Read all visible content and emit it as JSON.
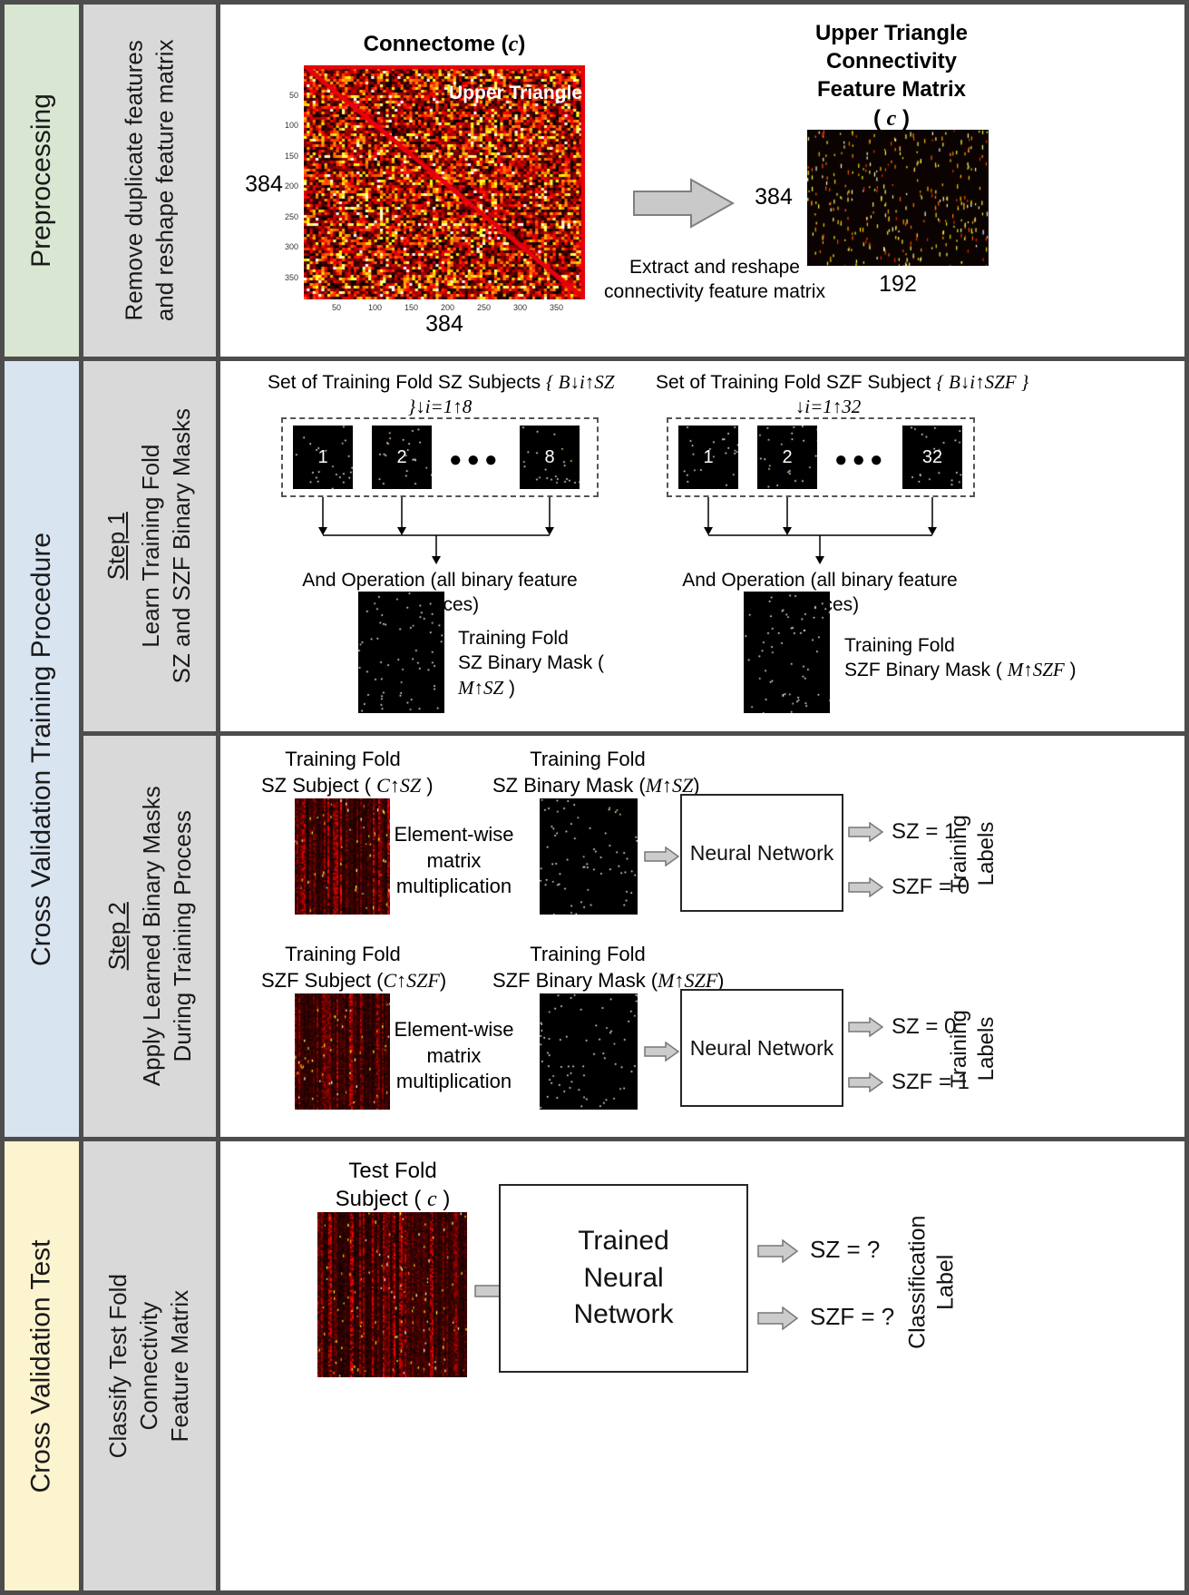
{
  "palette": {
    "green": "#d9e7d2",
    "blue": "#d9e4f1",
    "yellow": "#fcf3cf",
    "gray_band": "#d9d9d9",
    "border_gray": "#4d4d4d",
    "diagonal_red": "#e8000b"
  },
  "left_bands": {
    "preprocessing": "Preprocessing",
    "training": "Cross Validation Training Procedure",
    "test": "Cross Validation Test"
  },
  "gray_bands": {
    "preprocessing_line1": "Remove duplicate features",
    "preprocessing_line2": "and reshape feature matrix",
    "step1_title": "Step 1",
    "step1_line1": "Learn Training Fold",
    "step1_line2": "SZ and SZF Binary Masks",
    "step2_title": "Step 2",
    "step2_line1": "Apply Learned Binary Masks",
    "step2_line2": "During Training Process",
    "test_line1": "Classify Test Fold",
    "test_line2": "Connectivity",
    "test_line3": "Feature Matrix"
  },
  "row1": {
    "connectome_title_prefix": "Connectome (",
    "connectome_title_math": "c",
    "connectome_title_suffix": ")",
    "upper_triangle_label": "Upper Triangle",
    "axis_ticks": [
      "50",
      "100",
      "150",
      "200",
      "250",
      "300",
      "350"
    ],
    "left_dim": "384",
    "bottom_dim": "384",
    "arrow_caption_line1": "Extract and reshape",
    "arrow_caption_line2": "connectivity feature matrix",
    "result_title_line1": "Upper Triangle",
    "result_title_line2": "Connectivity",
    "result_title_line3": "Feature Matrix",
    "result_title_open": "( ",
    "result_title_math": "c",
    "result_title_close": " )",
    "result_left_dim": "384",
    "result_bottom_dim": "192"
  },
  "step1": {
    "sz_title_prefix": "Set of Training Fold SZ Subjects ",
    "sz_title_math1": "{ B↓i↑SZ",
    "sz_title_math2": "}↓i=1↑8",
    "sz_squares": [
      "1",
      "2",
      "8"
    ],
    "szf_title_prefix": "Set of Training Fold SZF Subject ",
    "szf_title_math1": "{ B↓i↑SZF }",
    "szf_title_math2": "↓i=1↑32",
    "szf_squares": [
      "1",
      "2",
      "32"
    ],
    "dots": "●●●",
    "and_operation": "And Operation (all binary feature matrices)",
    "sz_mask_line1": "Training Fold",
    "sz_mask_line2": "SZ Binary Mask (",
    "sz_mask_math": "M↑SZ",
    "sz_mask_close": " )",
    "szf_mask_line1": "Training Fold",
    "szf_mask_line2": "SZF Binary Mask ( ",
    "szf_mask_math": "M↑SZF",
    "szf_mask_close": " )"
  },
  "step2": {
    "rows": [
      {
        "subject_line1": "Training Fold",
        "subject_prefix": "SZ Subject ( ",
        "subject_math": "C↑SZ",
        "subject_close": " )",
        "elementwise_line1": "Element-wise",
        "elementwise_line2": "matrix",
        "elementwise_line3": "multiplication",
        "mask_line1": "Training Fold",
        "mask_prefix": "SZ Binary Mask (",
        "mask_math": "M↑SZ",
        "mask_close": ")",
        "nn_label": "Neural Network",
        "out_top": "SZ = 1",
        "out_bottom": "SZF = 0",
        "side_line1": "Training",
        "side_line2": "Labels"
      },
      {
        "subject_line1": "Training Fold",
        "subject_prefix": "SZF Subject (",
        "subject_math": "C↑SZF",
        "subject_close": ")",
        "elementwise_line1": "Element-wise",
        "elementwise_line2": "matrix",
        "elementwise_line3": "multiplication",
        "mask_line1": "Training Fold",
        "mask_prefix": "SZF Binary Mask (",
        "mask_math": "M↑SZF",
        "mask_close": ")",
        "nn_label": "Neural Network",
        "out_top": "SZ = 0",
        "out_bottom": "SZF = 1",
        "side_line1": "Training",
        "side_line2": "Labels"
      }
    ]
  },
  "test": {
    "caption_line1": "Test Fold",
    "caption_prefix": "Subject ( ",
    "caption_math": "c",
    "caption_close": " )",
    "nn_line1": "Trained",
    "nn_line2": "Neural",
    "nn_line3": "Network",
    "out_top": "SZ = ?",
    "out_bottom": "SZF = ?",
    "side_line1": "Classification",
    "side_line2": "Label"
  }
}
